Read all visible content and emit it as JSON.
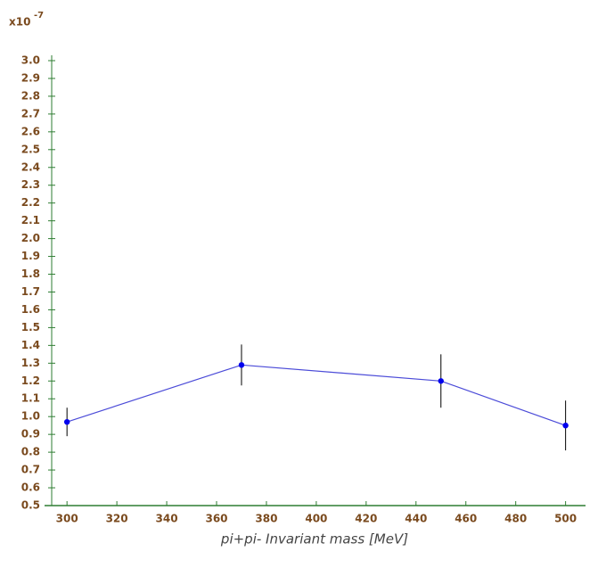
{
  "chart_data": {
    "type": "line",
    "multiplier": {
      "base": "x10",
      "exponent": "-7"
    },
    "x_label": "pi+pi- Invariant mass   [MeV]",
    "x": [
      300,
      370,
      450,
      500
    ],
    "series": [
      {
        "values": [
          0.97,
          1.29,
          1.2,
          0.95
        ],
        "errors": [
          0.08,
          0.115,
          0.15,
          0.14
        ],
        "color": "#4b4bd8",
        "marker_color": "#0000ee",
        "error_color": "#000000"
      }
    ],
    "xlim": [
      291,
      508
    ],
    "xticks": [
      300,
      320,
      340,
      360,
      380,
      400,
      420,
      440,
      460,
      480,
      500
    ],
    "ylim": [
      0.5,
      3.0
    ],
    "yticks": [
      0.5,
      0.6,
      0.7,
      0.8,
      0.9,
      {
        "value": 1,
        "label": "1.0"
      },
      1.1,
      1.2,
      1.3,
      1.4,
      1.5,
      1.6,
      1.7,
      1.8,
      1.9,
      {
        "value": 2,
        "label": "2.0"
      },
      2.1,
      2.2,
      2.3,
      2.4,
      2.5,
      2.6,
      2.7,
      2.8,
      2.9,
      {
        "value": 3,
        "label": "3.0"
      }
    ],
    "axis_color": "#2e7d32",
    "grid": false
  }
}
